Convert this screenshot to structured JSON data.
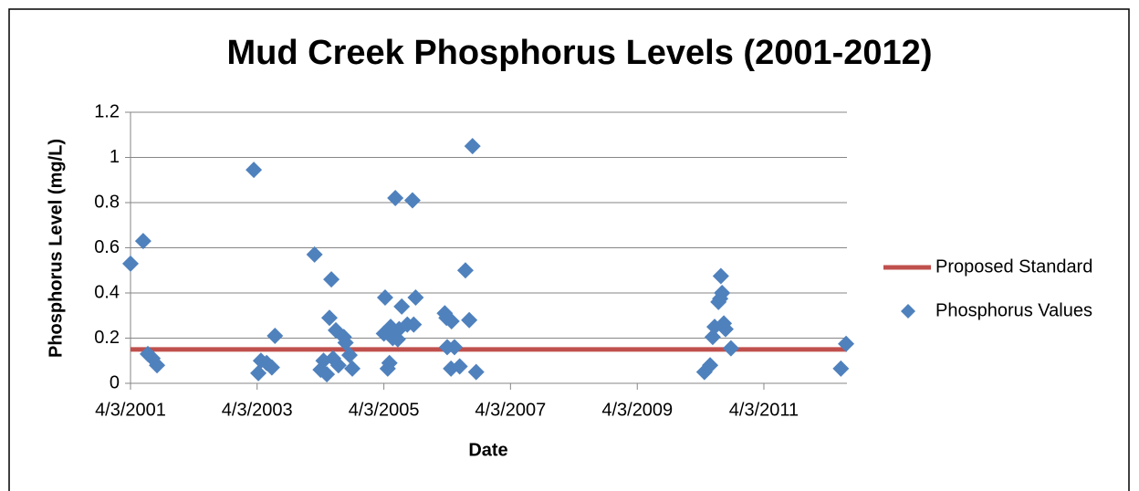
{
  "chart_data": {
    "type": "scatter",
    "title": "Mud Creek Phosphorus Levels (2001-2012)",
    "x_label": "Date",
    "y_label": "Phosphorus Level (mg/L)",
    "xlim": [
      "4/3/2001",
      "7/25/2012"
    ],
    "xticks": [
      "4/3/2001",
      "4/3/2003",
      "4/3/2005",
      "4/3/2007",
      "4/3/2009",
      "4/3/2011"
    ],
    "ylim": [
      0,
      1.2
    ],
    "yticks": [
      0,
      0.2,
      0.4,
      0.6,
      0.8,
      1,
      1.2
    ],
    "grid": true,
    "legend": "right",
    "series": [
      {
        "name": "Proposed Standard",
        "type": "line",
        "color": "#c0504d",
        "x": [
          "4/3/2001",
          "7/25/2012"
        ],
        "values": [
          0.15,
          0.15
        ]
      },
      {
        "name": "Phosphorus Values",
        "type": "scatter",
        "color": "#4f81bd",
        "x": [
          "4/3/2001",
          "6/15/2001",
          "7/12/2001",
          "8/8/2001",
          "9/3/2001",
          "3/15/2003",
          "4/10/2003",
          "4/25/2003",
          "5/28/2003",
          "6/27/2003",
          "7/15/2003",
          "2/28/2004",
          "4/3/2004",
          "4/20/2004",
          "5/9/2004",
          "5/24/2004",
          "6/4/2004",
          "6/14/2004",
          "6/30/2004",
          "7/15/2004",
          "8/15/2004",
          "8/25/2004",
          "9/17/2004",
          "10/3/2004",
          "4/3/2005",
          "4/10/2005",
          "4/25/2005",
          "5/5/2005",
          "5/12/2005",
          "5/24/2005",
          "6/8/2005",
          "6/22/2005",
          "6/30/2005",
          "7/15/2005",
          "8/16/2005",
          "9/15/2005",
          "9/22/2005",
          "10/3/2005",
          "3/20/2006",
          "3/30/2006",
          "4/3/2006",
          "4/25/2006",
          "4/28/2006",
          "5/15/2006",
          "6/14/2006",
          "7/17/2006",
          "8/8/2006",
          "8/27/2006",
          "9/17/2006",
          "4/25/2010",
          "5/28/2010",
          "6/12/2010",
          "6/23/2010",
          "7/15/2010",
          "7/25/2010",
          "7/29/2010",
          "8/5/2010",
          "8/15/2010",
          "8/25/2010",
          "9/25/2010",
          "6/20/2012",
          "7/20/2012"
        ],
        "values": [
          0.53,
          0.63,
          0.13,
          0.11,
          0.08,
          0.945,
          0.045,
          0.1,
          0.09,
          0.07,
          0.21,
          0.57,
          0.06,
          0.1,
          0.04,
          0.29,
          0.46,
          0.11,
          0.235,
          0.08,
          0.205,
          0.18,
          0.125,
          0.065,
          0.22,
          0.38,
          0.065,
          0.09,
          0.25,
          0.2,
          0.82,
          0.195,
          0.24,
          0.34,
          0.26,
          0.81,
          0.26,
          0.38,
          0.31,
          0.29,
          0.16,
          0.065,
          0.275,
          0.16,
          0.075,
          0.5,
          0.28,
          1.05,
          0.05,
          0.05,
          0.08,
          0.205,
          0.25,
          0.36,
          0.375,
          0.475,
          0.4,
          0.265,
          0.24,
          0.155,
          0.065,
          0.175
        ]
      }
    ]
  }
}
